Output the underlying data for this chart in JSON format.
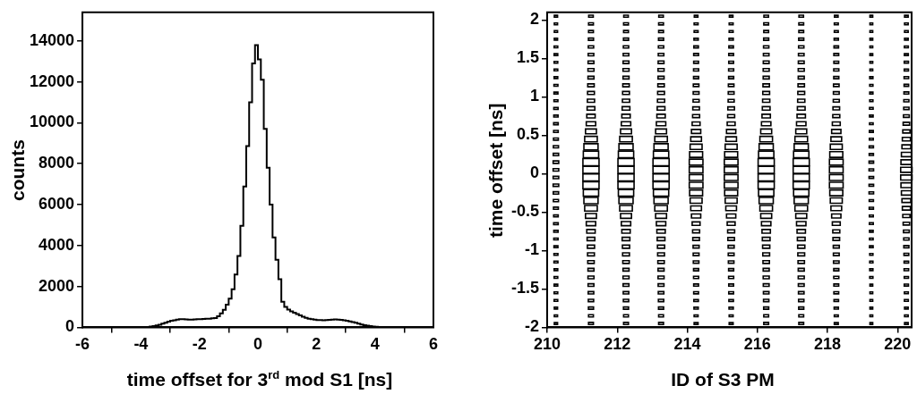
{
  "chart_data": [
    {
      "type": "histogram",
      "xlabel": "time offset for 3$^{rd}$ mod S1 [ns]",
      "ylabel": "counts",
      "color": "#000000",
      "bins": [
        -6,
        -5.9,
        -5.8,
        -5.7,
        -5.6,
        -5.5,
        -5.4,
        -5.3,
        -5.2,
        -5.1,
        -5,
        -4.9,
        -4.8,
        -4.7,
        -4.6,
        -4.5,
        -4.4,
        -4.3,
        -4.2,
        -4.1,
        -4,
        -3.9,
        -3.8,
        -3.7,
        -3.6,
        -3.5,
        -3.4,
        -3.3,
        -3.2,
        -3.1,
        -3,
        -2.9,
        -2.8,
        -2.7,
        -2.6,
        -2.5,
        -2.4,
        -2.3,
        -2.2,
        -2.1,
        -2,
        -1.9,
        -1.8,
        -1.7,
        -1.6,
        -1.5,
        -1.4,
        -1.3,
        -1.2,
        -1.1,
        -1,
        -0.9,
        -0.8,
        -0.7,
        -0.6,
        -0.5,
        -0.4,
        -0.3,
        -0.2,
        -0.1,
        0,
        0.1,
        0.2,
        0.3,
        0.4,
        0.5,
        0.6,
        0.7,
        0.8,
        0.9,
        1,
        1.1,
        1.2,
        1.3,
        1.4,
        1.5,
        1.6,
        1.7,
        1.8,
        1.9,
        2,
        2.1,
        2.2,
        2.3,
        2.4,
        2.5,
        2.6,
        2.7,
        2.8,
        2.9,
        3,
        3.1,
        3.2,
        3.3,
        3.4,
        3.5,
        3.6,
        3.7,
        3.8,
        3.9,
        4,
        4.1,
        4.2,
        4.3,
        4.4,
        4.5,
        4.6,
        4.7,
        4.8,
        4.9,
        5,
        5.1,
        5.2,
        5.3,
        5.4,
        5.5,
        5.6,
        5.7,
        5.8,
        5.9,
        6
      ],
      "values": [
        0,
        0,
        0,
        0,
        0,
        0,
        0,
        0,
        0,
        0,
        0,
        0,
        0,
        0,
        0,
        0,
        0,
        0,
        0,
        0,
        10,
        10,
        20,
        40,
        60,
        90,
        130,
        180,
        230,
        280,
        320,
        350,
        380,
        400,
        400,
        390,
        380,
        380,
        390,
        400,
        400,
        410,
        420,
        420,
        440,
        450,
        540,
        680,
        860,
        1110,
        1400,
        1860,
        2580,
        3490,
        4960,
        6890,
        8860,
        11000,
        12900,
        13800,
        13100,
        12100,
        9700,
        7800,
        6000,
        4400,
        3300,
        2350,
        1250,
        1000,
        870,
        780,
        720,
        650,
        580,
        520,
        460,
        420,
        400,
        380,
        360,
        360,
        350,
        360,
        370,
        380,
        390,
        380,
        370,
        350,
        320,
        290,
        260,
        220,
        180,
        140,
        110,
        80,
        60,
        40,
        30,
        20,
        20,
        10,
        10,
        0,
        0,
        0,
        0,
        0,
        0,
        0,
        0,
        0,
        0,
        0,
        0,
        0,
        0,
        0
      ],
      "xlim": [
        -6,
        6
      ],
      "xticks": [
        -6,
        -4,
        -2,
        0,
        2,
        4,
        6
      ],
      "ylim": [
        0,
        15400
      ],
      "yticks": [
        0,
        2000,
        4000,
        6000,
        8000,
        10000,
        12000,
        14000
      ],
      "grid": false,
      "legend": false
    },
    {
      "type": "bubble",
      "xlabel": "ID of S3 PM",
      "ylabel": "time offset [ns]",
      "marker": "square",
      "xlim": [
        210,
        220.4
      ],
      "xticks": [
        210,
        212,
        214,
        216,
        218,
        220
      ],
      "ylim": [
        -2,
        2.1
      ],
      "yticks": [
        -2,
        -1.5,
        -1,
        -0.5,
        0,
        0.5,
        1,
        1.5,
        2
      ],
      "grid": false,
      "legend": false,
      "series": [
        {
          "color": "#000000",
          "x": [
            210.25,
            210.25,
            210.25,
            210.25,
            210.25,
            210.25,
            210.25,
            210.25,
            210.25,
            210.25,
            210.25,
            210.25,
            210.25,
            210.25,
            210.25,
            210.25,
            210.25,
            210.25,
            210.25,
            210.25,
            210.25,
            210.25,
            210.25,
            210.25,
            210.25,
            210.25,
            210.25,
            210.25,
            210.25,
            210.25,
            210.25,
            210.25,
            210.25,
            210.25,
            210.25,
            210.25,
            210.25,
            210.25,
            210.25,
            210.25,
            210.25
          ],
          "values": [
            -1.95,
            -1.85,
            -1.75,
            -1.65,
            -1.55,
            -1.45,
            -1.35,
            -1.25,
            -1.15,
            -1.05,
            -0.95,
            -0.85,
            -0.75,
            -0.65,
            -0.55,
            -0.45,
            -0.35,
            -0.25,
            -0.15,
            -0.05,
            0.05,
            0.15,
            0.25,
            0.35,
            0.45,
            0.55,
            0.65,
            0.75,
            0.85,
            0.95,
            1.05,
            1.15,
            1.25,
            1.35,
            1.45,
            1.55,
            1.65,
            1.75,
            1.85,
            1.95,
            2.05
          ],
          "sizes": [
            0.04,
            0.04,
            0.04,
            0.05,
            0.05,
            0.05,
            0.05,
            0.05,
            0.06,
            0.06,
            0.06,
            0.07,
            0.07,
            0.08,
            0.08,
            0.09,
            0.1,
            0.11,
            0.12,
            0.12,
            0.12,
            0.12,
            0.11,
            0.1,
            0.09,
            0.08,
            0.08,
            0.07,
            0.07,
            0.06,
            0.06,
            0.06,
            0.05,
            0.05,
            0.05,
            0.05,
            0.05,
            0.04,
            0.04,
            0.04,
            0.04
          ]
        },
        {
          "color": "#000000",
          "x": [
            211.25,
            211.25,
            211.25,
            211.25,
            211.25,
            211.25,
            211.25,
            211.25,
            211.25,
            211.25,
            211.25,
            211.25,
            211.25,
            211.25,
            211.25,
            211.25,
            211.25,
            211.25,
            211.25,
            211.25,
            211.25,
            211.25,
            211.25,
            211.25,
            211.25,
            211.25,
            211.25,
            211.25,
            211.25,
            211.25,
            211.25,
            211.25,
            211.25,
            211.25,
            211.25,
            211.25,
            211.25,
            211.25,
            211.25,
            211.25,
            211.25
          ],
          "values": [
            -1.95,
            -1.85,
            -1.75,
            -1.65,
            -1.55,
            -1.45,
            -1.35,
            -1.25,
            -1.15,
            -1.05,
            -0.95,
            -0.85,
            -0.75,
            -0.65,
            -0.55,
            -0.45,
            -0.35,
            -0.25,
            -0.15,
            -0.05,
            0.05,
            0.15,
            0.25,
            0.35,
            0.45,
            0.55,
            0.65,
            0.75,
            0.85,
            0.95,
            1.05,
            1.15,
            1.25,
            1.35,
            1.45,
            1.55,
            1.65,
            1.75,
            1.85,
            1.95,
            2.05
          ],
          "sizes": [
            0.09,
            0.09,
            0.1,
            0.11,
            0.12,
            0.13,
            0.14,
            0.14,
            0.16,
            0.18,
            0.2,
            0.23,
            0.27,
            0.34,
            0.46,
            0.61,
            0.77,
            0.9,
            1,
            1,
            1,
            1,
            0.9,
            0.77,
            0.61,
            0.46,
            0.34,
            0.27,
            0.23,
            0.2,
            0.18,
            0.16,
            0.14,
            0.14,
            0.13,
            0.12,
            0.11,
            0.1,
            0.09,
            0.09,
            0.08
          ]
        },
        {
          "color": "#000000",
          "x": [
            212.25,
            212.25,
            212.25,
            212.25,
            212.25,
            212.25,
            212.25,
            212.25,
            212.25,
            212.25,
            212.25,
            212.25,
            212.25,
            212.25,
            212.25,
            212.25,
            212.25,
            212.25,
            212.25,
            212.25,
            212.25,
            212.25,
            212.25,
            212.25,
            212.25,
            212.25,
            212.25,
            212.25,
            212.25,
            212.25,
            212.25,
            212.25,
            212.25,
            212.25,
            212.25,
            212.25,
            212.25,
            212.25,
            212.25,
            212.25,
            212.25
          ],
          "values": [
            -1.95,
            -1.85,
            -1.75,
            -1.65,
            -1.55,
            -1.45,
            -1.35,
            -1.25,
            -1.15,
            -1.05,
            -0.95,
            -0.85,
            -0.75,
            -0.65,
            -0.55,
            -0.45,
            -0.35,
            -0.25,
            -0.15,
            -0.05,
            0.05,
            0.15,
            0.25,
            0.35,
            0.45,
            0.55,
            0.65,
            0.75,
            0.85,
            0.95,
            1.05,
            1.15,
            1.25,
            1.35,
            1.45,
            1.55,
            1.65,
            1.75,
            1.85,
            1.95,
            2.05
          ],
          "sizes": [
            0.09,
            0.09,
            0.1,
            0.11,
            0.12,
            0.13,
            0.14,
            0.14,
            0.16,
            0.18,
            0.2,
            0.23,
            0.27,
            0.34,
            0.46,
            0.61,
            0.77,
            0.9,
            1,
            1,
            1,
            1,
            0.9,
            0.77,
            0.61,
            0.46,
            0.34,
            0.27,
            0.23,
            0.2,
            0.18,
            0.16,
            0.14,
            0.14,
            0.13,
            0.12,
            0.11,
            0.1,
            0.09,
            0.09,
            0.08
          ]
        },
        {
          "color": "#000000",
          "x": [
            213.25,
            213.25,
            213.25,
            213.25,
            213.25,
            213.25,
            213.25,
            213.25,
            213.25,
            213.25,
            213.25,
            213.25,
            213.25,
            213.25,
            213.25,
            213.25,
            213.25,
            213.25,
            213.25,
            213.25,
            213.25,
            213.25,
            213.25,
            213.25,
            213.25,
            213.25,
            213.25,
            213.25,
            213.25,
            213.25,
            213.25,
            213.25,
            213.25,
            213.25,
            213.25,
            213.25,
            213.25,
            213.25,
            213.25,
            213.25,
            213.25
          ],
          "values": [
            -1.95,
            -1.85,
            -1.75,
            -1.65,
            -1.55,
            -1.45,
            -1.35,
            -1.25,
            -1.15,
            -1.05,
            -0.95,
            -0.85,
            -0.75,
            -0.65,
            -0.55,
            -0.45,
            -0.35,
            -0.25,
            -0.15,
            -0.05,
            0.05,
            0.15,
            0.25,
            0.35,
            0.45,
            0.55,
            0.65,
            0.75,
            0.85,
            0.95,
            1.05,
            1.15,
            1.25,
            1.35,
            1.45,
            1.55,
            1.65,
            1.75,
            1.85,
            1.95,
            2.05
          ],
          "sizes": [
            0.09,
            0.09,
            0.1,
            0.11,
            0.12,
            0.13,
            0.14,
            0.14,
            0.16,
            0.18,
            0.2,
            0.23,
            0.27,
            0.34,
            0.46,
            0.61,
            0.77,
            0.9,
            1,
            1,
            1,
            1,
            0.9,
            0.77,
            0.61,
            0.46,
            0.34,
            0.27,
            0.23,
            0.2,
            0.18,
            0.16,
            0.14,
            0.14,
            0.13,
            0.12,
            0.11,
            0.1,
            0.09,
            0.09,
            0.08
          ]
        },
        {
          "color": "#000000",
          "x": [
            214.25,
            214.25,
            214.25,
            214.25,
            214.25,
            214.25,
            214.25,
            214.25,
            214.25,
            214.25,
            214.25,
            214.25,
            214.25,
            214.25,
            214.25,
            214.25,
            214.25,
            214.25,
            214.25,
            214.25,
            214.25,
            214.25,
            214.25,
            214.25,
            214.25,
            214.25,
            214.25,
            214.25,
            214.25,
            214.25,
            214.25,
            214.25,
            214.25,
            214.25,
            214.25,
            214.25,
            214.25,
            214.25,
            214.25,
            214.25,
            214.25
          ],
          "values": [
            -1.95,
            -1.85,
            -1.75,
            -1.65,
            -1.55,
            -1.45,
            -1.35,
            -1.25,
            -1.15,
            -1.05,
            -0.95,
            -0.85,
            -0.75,
            -0.65,
            -0.55,
            -0.45,
            -0.35,
            -0.25,
            -0.15,
            -0.05,
            0.05,
            0.15,
            0.25,
            0.35,
            0.45,
            0.55,
            0.65,
            0.75,
            0.85,
            0.95,
            1.05,
            1.15,
            1.25,
            1.35,
            1.45,
            1.55,
            1.65,
            1.75,
            1.85,
            1.95,
            2.05
          ],
          "sizes": [
            0.06,
            0.06,
            0.07,
            0.08,
            0.09,
            0.09,
            0.1,
            0.1,
            0.12,
            0.13,
            0.14,
            0.17,
            0.19,
            0.24,
            0.33,
            0.44,
            0.55,
            0.65,
            0.72,
            0.72,
            0.72,
            0.72,
            0.65,
            0.55,
            0.44,
            0.33,
            0.24,
            0.19,
            0.17,
            0.14,
            0.13,
            0.12,
            0.1,
            0.1,
            0.09,
            0.09,
            0.08,
            0.07,
            0.06,
            0.06,
            0.05
          ]
        },
        {
          "color": "#000000",
          "x": [
            215.25,
            215.25,
            215.25,
            215.25,
            215.25,
            215.25,
            215.25,
            215.25,
            215.25,
            215.25,
            215.25,
            215.25,
            215.25,
            215.25,
            215.25,
            215.25,
            215.25,
            215.25,
            215.25,
            215.25,
            215.25,
            215.25,
            215.25,
            215.25,
            215.25,
            215.25,
            215.25,
            215.25,
            215.25,
            215.25,
            215.25,
            215.25,
            215.25,
            215.25,
            215.25,
            215.25,
            215.25,
            215.25,
            215.25,
            215.25,
            215.25
          ],
          "values": [
            -1.95,
            -1.85,
            -1.75,
            -1.65,
            -1.55,
            -1.45,
            -1.35,
            -1.25,
            -1.15,
            -1.05,
            -0.95,
            -0.85,
            -0.75,
            -0.65,
            -0.55,
            -0.45,
            -0.35,
            -0.25,
            -0.15,
            -0.05,
            0.05,
            0.15,
            0.25,
            0.35,
            0.45,
            0.55,
            0.65,
            0.75,
            0.85,
            0.95,
            1.05,
            1.15,
            1.25,
            1.35,
            1.45,
            1.55,
            1.65,
            1.75,
            1.85,
            1.95,
            2.05
          ],
          "sizes": [
            0.06,
            0.06,
            0.07,
            0.08,
            0.09,
            0.09,
            0.1,
            0.1,
            0.12,
            0.13,
            0.14,
            0.17,
            0.19,
            0.24,
            0.33,
            0.44,
            0.55,
            0.65,
            0.72,
            0.72,
            0.72,
            0.72,
            0.65,
            0.55,
            0.44,
            0.33,
            0.24,
            0.19,
            0.17,
            0.14,
            0.13,
            0.12,
            0.1,
            0.1,
            0.09,
            0.09,
            0.08,
            0.07,
            0.06,
            0.06,
            0.05
          ]
        },
        {
          "color": "#000000",
          "x": [
            216.25,
            216.25,
            216.25,
            216.25,
            216.25,
            216.25,
            216.25,
            216.25,
            216.25,
            216.25,
            216.25,
            216.25,
            216.25,
            216.25,
            216.25,
            216.25,
            216.25,
            216.25,
            216.25,
            216.25,
            216.25,
            216.25,
            216.25,
            216.25,
            216.25,
            216.25,
            216.25,
            216.25,
            216.25,
            216.25,
            216.25,
            216.25,
            216.25,
            216.25,
            216.25,
            216.25,
            216.25,
            216.25,
            216.25,
            216.25,
            216.25
          ],
          "values": [
            -1.95,
            -1.85,
            -1.75,
            -1.65,
            -1.55,
            -1.45,
            -1.35,
            -1.25,
            -1.15,
            -1.05,
            -0.95,
            -0.85,
            -0.75,
            -0.65,
            -0.55,
            -0.45,
            -0.35,
            -0.25,
            -0.15,
            -0.05,
            0.05,
            0.15,
            0.25,
            0.35,
            0.45,
            0.55,
            0.65,
            0.75,
            0.85,
            0.95,
            1.05,
            1.15,
            1.25,
            1.35,
            1.45,
            1.55,
            1.65,
            1.75,
            1.85,
            1.95,
            2.05
          ],
          "sizes": [
            0.09,
            0.09,
            0.1,
            0.11,
            0.12,
            0.13,
            0.14,
            0.14,
            0.16,
            0.18,
            0.2,
            0.23,
            0.27,
            0.34,
            0.46,
            0.61,
            0.77,
            0.9,
            1,
            1,
            1,
            1,
            0.9,
            0.77,
            0.61,
            0.46,
            0.34,
            0.27,
            0.23,
            0.2,
            0.18,
            0.16,
            0.14,
            0.14,
            0.13,
            0.12,
            0.11,
            0.1,
            0.09,
            0.09,
            0.08
          ]
        },
        {
          "color": "#000000",
          "x": [
            217.25,
            217.25,
            217.25,
            217.25,
            217.25,
            217.25,
            217.25,
            217.25,
            217.25,
            217.25,
            217.25,
            217.25,
            217.25,
            217.25,
            217.25,
            217.25,
            217.25,
            217.25,
            217.25,
            217.25,
            217.25,
            217.25,
            217.25,
            217.25,
            217.25,
            217.25,
            217.25,
            217.25,
            217.25,
            217.25,
            217.25,
            217.25,
            217.25,
            217.25,
            217.25,
            217.25,
            217.25,
            217.25,
            217.25,
            217.25,
            217.25
          ],
          "values": [
            -1.95,
            -1.85,
            -1.75,
            -1.65,
            -1.55,
            -1.45,
            -1.35,
            -1.25,
            -1.15,
            -1.05,
            -0.95,
            -0.85,
            -0.75,
            -0.65,
            -0.55,
            -0.45,
            -0.35,
            -0.25,
            -0.15,
            -0.05,
            0.05,
            0.15,
            0.25,
            0.35,
            0.45,
            0.55,
            0.65,
            0.75,
            0.85,
            0.95,
            1.05,
            1.15,
            1.25,
            1.35,
            1.45,
            1.55,
            1.65,
            1.75,
            1.85,
            1.95,
            2.05
          ],
          "sizes": [
            0.09,
            0.09,
            0.1,
            0.11,
            0.12,
            0.13,
            0.14,
            0.14,
            0.16,
            0.18,
            0.2,
            0.23,
            0.27,
            0.34,
            0.46,
            0.61,
            0.77,
            0.9,
            1,
            1,
            1,
            1,
            0.9,
            0.77,
            0.61,
            0.46,
            0.34,
            0.27,
            0.23,
            0.2,
            0.18,
            0.16,
            0.14,
            0.14,
            0.13,
            0.12,
            0.11,
            0.1,
            0.09,
            0.09,
            0.08
          ]
        },
        {
          "color": "#000000",
          "x": [
            218.25,
            218.25,
            218.25,
            218.25,
            218.25,
            218.25,
            218.25,
            218.25,
            218.25,
            218.25,
            218.25,
            218.25,
            218.25,
            218.25,
            218.25,
            218.25,
            218.25,
            218.25,
            218.25,
            218.25,
            218.25,
            218.25,
            218.25,
            218.25,
            218.25,
            218.25,
            218.25,
            218.25,
            218.25,
            218.25,
            218.25,
            218.25,
            218.25,
            218.25,
            218.25,
            218.25,
            218.25,
            218.25,
            218.25,
            218.25,
            218.25
          ],
          "values": [
            -1.95,
            -1.85,
            -1.75,
            -1.65,
            -1.55,
            -1.45,
            -1.35,
            -1.25,
            -1.15,
            -1.05,
            -0.95,
            -0.85,
            -0.75,
            -0.65,
            -0.55,
            -0.45,
            -0.35,
            -0.25,
            -0.15,
            -0.05,
            0.05,
            0.15,
            0.25,
            0.35,
            0.45,
            0.55,
            0.65,
            0.75,
            0.85,
            0.95,
            1.05,
            1.15,
            1.25,
            1.35,
            1.45,
            1.55,
            1.65,
            1.75,
            1.85,
            1.95,
            2.05
          ],
          "sizes": [
            0.06,
            0.06,
            0.07,
            0.08,
            0.09,
            0.09,
            0.1,
            0.1,
            0.12,
            0.13,
            0.14,
            0.17,
            0.19,
            0.24,
            0.33,
            0.44,
            0.55,
            0.65,
            0.72,
            0.72,
            0.72,
            0.72,
            0.65,
            0.55,
            0.44,
            0.33,
            0.24,
            0.19,
            0.17,
            0.14,
            0.13,
            0.12,
            0.1,
            0.1,
            0.09,
            0.09,
            0.08,
            0.07,
            0.06,
            0.06,
            0.05
          ]
        },
        {
          "color": "#000000",
          "x": [
            219.25,
            219.25,
            219.25,
            219.25,
            219.25,
            219.25,
            219.25,
            219.25,
            219.25,
            219.25,
            219.25,
            219.25,
            219.25,
            219.25,
            219.25,
            219.25,
            219.25,
            219.25,
            219.25,
            219.25,
            219.25,
            219.25,
            219.25,
            219.25,
            219.25,
            219.25,
            219.25,
            219.25,
            219.25,
            219.25,
            219.25,
            219.25,
            219.25,
            219.25,
            219.25,
            219.25,
            219.25,
            219.25,
            219.25,
            219.25,
            219.25
          ],
          "values": [
            -1.95,
            -1.85,
            -1.75,
            -1.65,
            -1.55,
            -1.45,
            -1.35,
            -1.25,
            -1.15,
            -1.05,
            -0.95,
            -0.85,
            -0.75,
            -0.65,
            -0.55,
            -0.45,
            -0.35,
            -0.25,
            -0.15,
            -0.05,
            0.05,
            0.15,
            0.25,
            0.35,
            0.45,
            0.55,
            0.65,
            0.75,
            0.85,
            0.95,
            1.05,
            1.15,
            1.25,
            1.35,
            1.45,
            1.55,
            1.65,
            1.75,
            1.85,
            1.95,
            2.05
          ],
          "sizes": [
            0.03,
            0.03,
            0.03,
            0.03,
            0.03,
            0.03,
            0.04,
            0.04,
            0.04,
            0.04,
            0.05,
            0.05,
            0.05,
            0.06,
            0.06,
            0.07,
            0.07,
            0.08,
            0.08,
            0.08,
            0.08,
            0.08,
            0.07,
            0.07,
            0.06,
            0.06,
            0.05,
            0.05,
            0.05,
            0.04,
            0.04,
            0.04,
            0.04,
            0.03,
            0.03,
            0.03,
            0.03,
            0.03,
            0.03,
            0.03,
            0.03
          ]
        },
        {
          "color": "#000000",
          "x": [
            220.25,
            220.25,
            220.25,
            220.25,
            220.25,
            220.25,
            220.25,
            220.25,
            220.25,
            220.25,
            220.25,
            220.25,
            220.25,
            220.25,
            220.25,
            220.25,
            220.25,
            220.25,
            220.25,
            220.25,
            220.25,
            220.25,
            220.25,
            220.25,
            220.25,
            220.25,
            220.25,
            220.25,
            220.25,
            220.25,
            220.25,
            220.25,
            220.25,
            220.25,
            220.25,
            220.25,
            220.25,
            220.25,
            220.25,
            220.25,
            220.25
          ],
          "values": [
            -1.95,
            -1.85,
            -1.75,
            -1.65,
            -1.55,
            -1.45,
            -1.35,
            -1.25,
            -1.15,
            -1.05,
            -0.95,
            -0.85,
            -0.75,
            -0.65,
            -0.55,
            -0.45,
            -0.35,
            -0.25,
            -0.15,
            -0.05,
            0.05,
            0.15,
            0.25,
            0.35,
            0.45,
            0.55,
            0.65,
            0.75,
            0.85,
            0.95,
            1.05,
            1.15,
            1.25,
            1.35,
            1.45,
            1.55,
            1.65,
            1.75,
            1.85,
            1.95,
            2.05
          ],
          "sizes": [
            0.05,
            0.05,
            0.05,
            0.06,
            0.06,
            0.07,
            0.07,
            0.08,
            0.08,
            0.09,
            0.1,
            0.11,
            0.13,
            0.16,
            0.2,
            0.25,
            0.3,
            0.38,
            0.45,
            0.5,
            0.5,
            0.45,
            0.38,
            0.3,
            0.25,
            0.2,
            0.16,
            0.13,
            0.11,
            0.1,
            0.09,
            0.08,
            0.08,
            0.07,
            0.07,
            0.06,
            0.06,
            0.05,
            0.05,
            0.05,
            0.05
          ]
        }
      ]
    }
  ]
}
